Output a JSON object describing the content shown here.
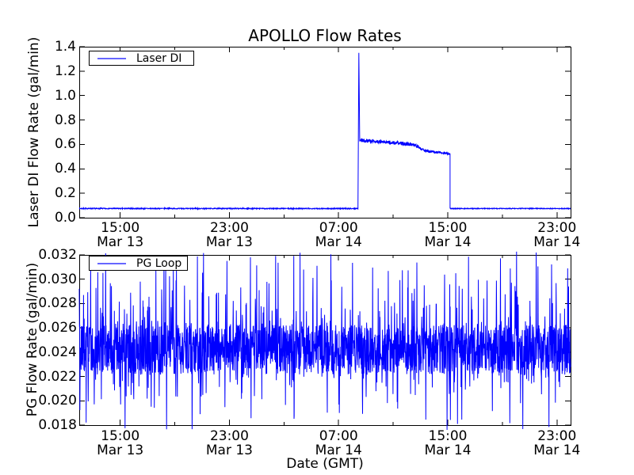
{
  "figure": {
    "title": "APOLLO Flow Rates",
    "background_color": "#ffffff",
    "axis_color": "#000000",
    "line_color": "#0000ff"
  },
  "chart_data": [
    {
      "type": "line",
      "title": "APOLLO Flow Rates",
      "ylabel": "Laser DI Flow Rate (gal/min)",
      "legend": {
        "label": "Laser DI",
        "position": "upper left"
      },
      "line_color": "#0000ff",
      "grid": false,
      "ylim": [
        0.0,
        1.4
      ],
      "ytick_labels": [
        "0.0",
        "0.2",
        "0.4",
        "0.6",
        "0.8",
        "1.0",
        "1.2",
        "1.4"
      ],
      "x_axis": {
        "epoch": "Mar 13 12:00 GMT",
        "range_hours": [
          0,
          36
        ],
        "major_ticks": [
          {
            "t": 3,
            "time": "15:00",
            "date": "Mar 13"
          },
          {
            "t": 11,
            "time": "23:00",
            "date": "Mar 13"
          },
          {
            "t": 19,
            "time": "07:00",
            "date": "Mar 14"
          },
          {
            "t": 27,
            "time": "15:00",
            "date": "Mar 14"
          },
          {
            "t": 35,
            "time": "23:00",
            "date": "Mar 14"
          }
        ],
        "minor_ticks_t": [
          7,
          15,
          23,
          31
        ]
      },
      "series_model": {
        "points_per_hour": 66,
        "segments": [
          {
            "t0": 0,
            "t1": 20.42,
            "v0": 0.075,
            "v1": 0.075,
            "noise": 0.004,
            "desc": "idle baseline before startup"
          },
          {
            "t0": 20.42,
            "t1": 20.55,
            "peak": 1.35,
            "desc": "startup spike ~08:30 Mar 14"
          },
          {
            "t0": 20.55,
            "t1": 24.55,
            "v0": 0.635,
            "v1": 0.6,
            "noise": 0.015,
            "desc": "running plateau"
          },
          {
            "t0": 24.55,
            "t1": 25.4,
            "v0": 0.6,
            "v1": 0.545,
            "noise": 0.012,
            "desc": "step down"
          },
          {
            "t0": 25.4,
            "t1": 27.17,
            "v0": 0.545,
            "v1": 0.525,
            "noise": 0.01,
            "desc": "lower plateau"
          },
          {
            "t0": 27.17,
            "t1": 36,
            "v0": 0.075,
            "v1": 0.075,
            "noise": 0.003,
            "desc": "flow off at 15:00 Mar 14"
          }
        ]
      }
    },
    {
      "type": "line",
      "ylabel": "PG Flow Rate (gal/min)",
      "xlabel": "Date (GMT)",
      "legend": {
        "label": "PG Loop",
        "position": "upper left"
      },
      "line_color": "#0000ff",
      "grid": false,
      "ylim": [
        0.018,
        0.032
      ],
      "ytick_labels": [
        "0.018",
        "0.020",
        "0.022",
        "0.024",
        "0.026",
        "0.028",
        "0.030",
        "0.032"
      ],
      "x_axis": {
        "epoch": "Mar 13 12:00 GMT",
        "range_hours": [
          0,
          36
        ],
        "major_ticks": [
          {
            "t": 3,
            "time": "15:00",
            "date": "Mar 13"
          },
          {
            "t": 11,
            "time": "23:00",
            "date": "Mar 13"
          },
          {
            "t": 19,
            "time": "07:00",
            "date": "Mar 14"
          },
          {
            "t": 27,
            "time": "15:00",
            "date": "Mar 14"
          },
          {
            "t": 35,
            "time": "23:00",
            "date": "Mar 14"
          }
        ],
        "minor_ticks_t": [
          7,
          15,
          23,
          31
        ]
      },
      "series_model": {
        "points": 2200,
        "mean": 0.0242,
        "band_half": 0.002,
        "dense_band": [
          0.0222,
          0.0262
        ],
        "up_spike_prob": 0.1,
        "up_spike_max": 0.0323,
        "down_spike_prob": 0.07,
        "down_spike_min": 0.0176
      }
    }
  ]
}
